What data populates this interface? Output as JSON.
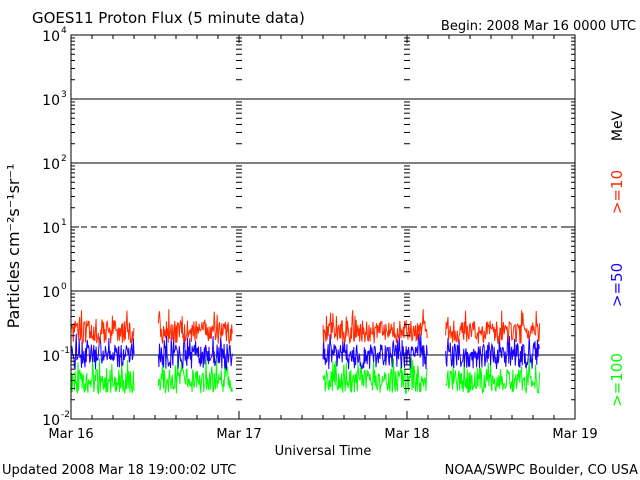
{
  "chart_data": {
    "type": "line",
    "title": "GOES11 Proton Flux (5 minute data)",
    "begin_label": "Begin: 2008 Mar 16 0000 UTC",
    "xlabel": "Universal Time",
    "ylabel": "Particles cm⁻²s⁻¹sr⁻¹",
    "unit_label": "MeV",
    "footer_left": "Updated 2008 Mar 18 19:00:02 UTC",
    "footer_right": "NOAA/SWPC Boulder, CO USA",
    "x_ticks": [
      "Mar 16",
      "Mar 17",
      "Mar 18",
      "Mar 19"
    ],
    "x_range_days": [
      0,
      3
    ],
    "y_scale": "log",
    "ylim": [
      0.01,
      10000
    ],
    "y_ticks": [
      {
        "base": "10",
        "exp": "4",
        "value": 10000
      },
      {
        "base": "10",
        "exp": "3",
        "value": 1000
      },
      {
        "base": "10",
        "exp": "2",
        "value": 100
      },
      {
        "base": "10",
        "exp": "1",
        "value": 10
      },
      {
        "base": "10",
        "exp": "0",
        "value": 1
      },
      {
        "base": "10",
        "exp": "-1",
        "value": 0.1
      },
      {
        "base": "10",
        "exp": "-2",
        "value": 0.01
      }
    ],
    "thresholds": [
      {
        "value": 10,
        "style": "dashed"
      }
    ],
    "data_gaps": "Data present approx. Mar 16 00:00-09:00, 12:30-23:00; Mar 17 12:00-Mar 18 03:00; Mar 18 05:30-19:00",
    "series": [
      {
        "name": ">=10",
        "color": "#ff2a00",
        "typical_range": [
          0.15,
          0.35
        ]
      },
      {
        "name": ">=50",
        "color": "#1a00ff",
        "typical_range": [
          0.06,
          0.15
        ]
      },
      {
        "name": ">=100",
        "color": "#00ff00",
        "typical_range": [
          0.025,
          0.06
        ]
      }
    ]
  }
}
